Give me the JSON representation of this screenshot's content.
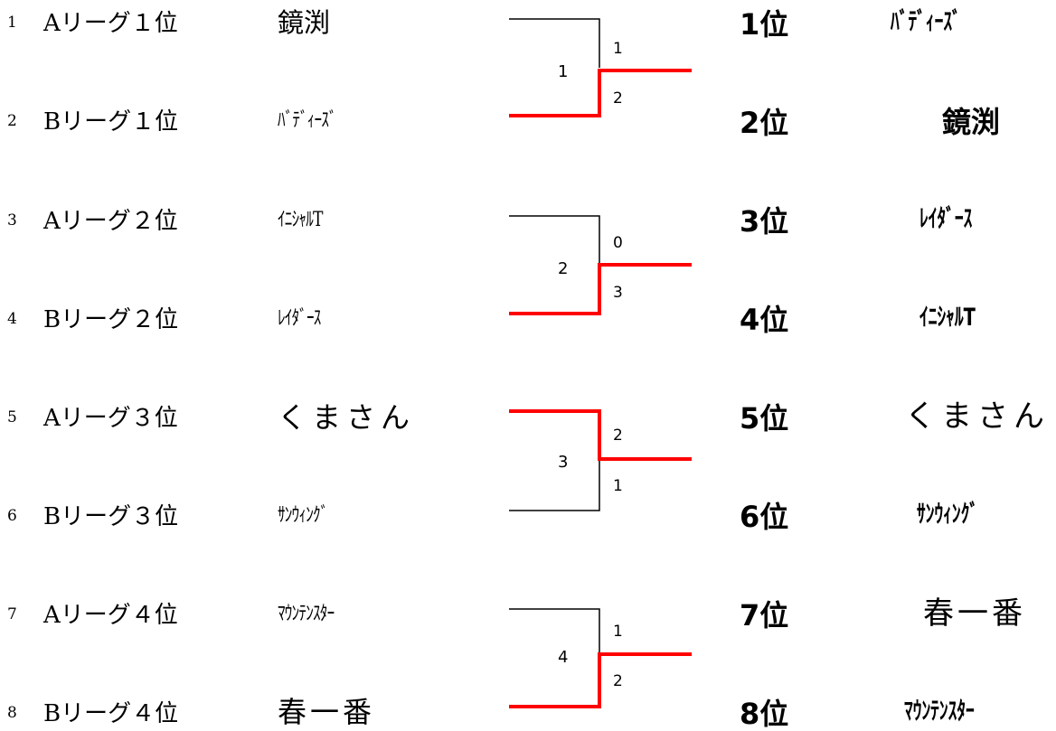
{
  "entries": [
    {
      "seed": "1",
      "league": "Aリーグ１位",
      "team": "鏡渕"
    },
    {
      "seed": "2",
      "league": "Bリーグ１位",
      "team": "ﾊﾞﾃﾞｨｰｽﾞ"
    },
    {
      "seed": "3",
      "league": "Aリーグ２位",
      "team": "ｲﾆｼｬﾙT"
    },
    {
      "seed": "4",
      "league": "Bリーグ２位",
      "team": "ﾚｲﾀﾞｰｽ"
    },
    {
      "seed": "5",
      "league": "Aリーグ３位",
      "team": "くまさん"
    },
    {
      "seed": "6",
      "league": "Bリーグ３位",
      "team": "ｻﾝｳｨﾝｸﾞ"
    },
    {
      "seed": "7",
      "league": "Aリーグ４位",
      "team": "ﾏｳﾝﾃﾝｽﾀｰ"
    },
    {
      "seed": "8",
      "league": "Bリーグ４位",
      "team": "春一番"
    }
  ],
  "matches": [
    {
      "number": "1",
      "score_top": "1",
      "score_bottom": "2",
      "winner": "bottom"
    },
    {
      "number": "2",
      "score_top": "0",
      "score_bottom": "3",
      "winner": "bottom"
    },
    {
      "number": "3",
      "score_top": "2",
      "score_bottom": "1",
      "winner": "top"
    },
    {
      "number": "4",
      "score_top": "1",
      "score_bottom": "2",
      "winner": "bottom"
    }
  ],
  "rankings": [
    {
      "rank": "1位",
      "team": "ﾊﾞﾃﾞｨｰｽﾞ"
    },
    {
      "rank": "2位",
      "team": "鏡渕"
    },
    {
      "rank": "3位",
      "team": "ﾚｲﾀﾞｰｽ"
    },
    {
      "rank": "4位",
      "team": "ｲﾆｼｬﾙT"
    },
    {
      "rank": "5位",
      "team": "くまさん"
    },
    {
      "rank": "6位",
      "team": "ｻﾝｳｨﾝｸﾞ"
    },
    {
      "rank": "7位",
      "team": "春一番"
    },
    {
      "rank": "8位",
      "team": "ﾏｳﾝﾃﾝｽﾀｰ"
    }
  ],
  "colors": {
    "winner_line": "#ff0000",
    "loser_line": "#000000"
  }
}
